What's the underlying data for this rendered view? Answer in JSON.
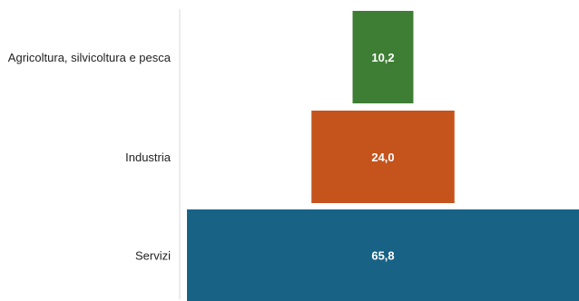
{
  "chart_data": {
    "type": "bar",
    "orientation": "horizontal-centered",
    "categories": [
      "Agricoltura, silvicoltura e pesca",
      "Industria",
      "Servizi"
    ],
    "values": [
      10.2,
      24.0,
      65.8
    ],
    "value_labels": [
      "10,2",
      "24,0",
      "65,8"
    ],
    "colors": [
      "#3e7e34",
      "#c5531c",
      "#186286"
    ],
    "grid": false,
    "legend": "none"
  }
}
